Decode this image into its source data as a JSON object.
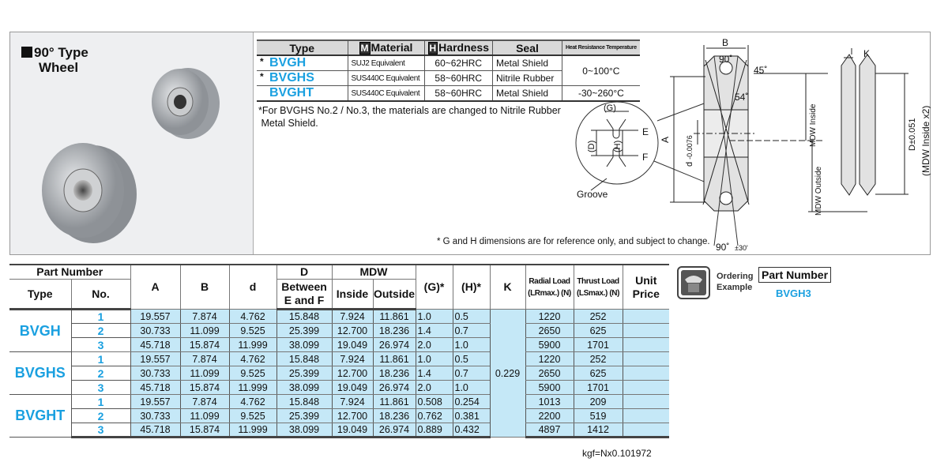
{
  "product": {
    "title_line1": "90° Type",
    "title_line2": "Wheel"
  },
  "spec_table": {
    "headers": {
      "type": "Type",
      "material_icon": "M",
      "material": "Material",
      "hardness_icon": "H",
      "hardness": "Hardness",
      "seal": "Seal",
      "heat": "Heat Resistance Temperature"
    },
    "rows": [
      {
        "mark": "*",
        "type": "BVGH",
        "material": "SUJ2 Equivalent",
        "hardness": "60~62HRC",
        "seal": "Metal Shield"
      },
      {
        "mark": "*",
        "type": "BVGHS",
        "material": "SUS440C Equivalent",
        "hardness": "58~60HRC",
        "seal": "Nitrile Rubber"
      },
      {
        "mark": "",
        "type": "BVGHT",
        "material": "SUS440C Equivalent",
        "hardness": "58~60HRC",
        "seal": "Metal Shield"
      }
    ],
    "heat_1": "0~100°C",
    "heat_2": "-30~260°C",
    "note_line1": "*For BVGHS No.2 / No.3, the materials are changed to Nitrile Rubber",
    "note_line2": "Metal Shield."
  },
  "diagram": {
    "B": "B",
    "angle_top": "90˚",
    "angle_45": "45˚",
    "angle_54": "54˚",
    "A": "A",
    "d": "d",
    "d_tol_upper": "0",
    "d_tol_lower": "-0.0076",
    "G": "(G)",
    "D": "(D)",
    "H": "(H)",
    "E": "E",
    "F": "F",
    "groove": "Groove",
    "mdw_inside": "MDW Inside",
    "mdw_outside": "MDW Outside",
    "K": "K",
    "D_tol": "D±0.051",
    "mdw_x2": "(MDW Inside x2)",
    "angle_bottom": "90˚",
    "angle_bottom_tol": "±30'",
    "note": "* G and H dimensions are for reference only, and subject to change."
  },
  "main_table": {
    "headers": {
      "part_number": "Part Number",
      "type": "Type",
      "no": "No.",
      "A": "A",
      "B": "B",
      "d": "d",
      "D": "D",
      "D_sub": "Between E and F",
      "mdw": "MDW",
      "inside": "Inside",
      "outside": "Outside",
      "G": "(G)*",
      "H": "(H)*",
      "K": "K",
      "radial_1": "Radial Load",
      "radial_2": "(LRmax.) (N)",
      "thrust_1": "Thrust Load",
      "thrust_2": "(LSmax.) (N)",
      "price": "Unit Price"
    },
    "K_value": "0.229",
    "groups": [
      {
        "type": "BVGH",
        "rows": [
          {
            "no": "1",
            "A": "19.557",
            "B": "7.874",
            "d": "4.762",
            "D": "15.848",
            "in": "7.924",
            "out": "11.861",
            "G": "1.0",
            "H": "0.5",
            "radial": "1220",
            "thrust": "252"
          },
          {
            "no": "2",
            "A": "30.733",
            "B": "11.099",
            "d": "9.525",
            "D": "25.399",
            "in": "12.700",
            "out": "18.236",
            "G": "1.4",
            "H": "0.7",
            "radial": "2650",
            "thrust": "625"
          },
          {
            "no": "3",
            "A": "45.718",
            "B": "15.874",
            "d": "11.999",
            "D": "38.099",
            "in": "19.049",
            "out": "26.974",
            "G": "2.0",
            "H": "1.0",
            "radial": "5900",
            "thrust": "1701"
          }
        ]
      },
      {
        "type": "BVGHS",
        "rows": [
          {
            "no": "1",
            "A": "19.557",
            "B": "7.874",
            "d": "4.762",
            "D": "15.848",
            "in": "7.924",
            "out": "11.861",
            "G": "1.0",
            "H": "0.5",
            "radial": "1220",
            "thrust": "252"
          },
          {
            "no": "2",
            "A": "30.733",
            "B": "11.099",
            "d": "9.525",
            "D": "25.399",
            "in": "12.700",
            "out": "18.236",
            "G": "1.4",
            "H": "0.7",
            "radial": "2650",
            "thrust": "625"
          },
          {
            "no": "3",
            "A": "45.718",
            "B": "15.874",
            "d": "11.999",
            "D": "38.099",
            "in": "19.049",
            "out": "26.974",
            "G": "2.0",
            "H": "1.0",
            "radial": "5900",
            "thrust": "1701"
          }
        ]
      },
      {
        "type": "BVGHT",
        "rows": [
          {
            "no": "1",
            "A": "19.557",
            "B": "7.874",
            "d": "4.762",
            "D": "15.848",
            "in": "7.924",
            "out": "11.861",
            "G": "0.508",
            "H": "0.254",
            "radial": "1013",
            "thrust": "209"
          },
          {
            "no": "2",
            "A": "30.733",
            "B": "11.099",
            "d": "9.525",
            "D": "25.399",
            "in": "12.700",
            "out": "18.236",
            "G": "0.762",
            "H": "0.381",
            "radial": "2200",
            "thrust": "519"
          },
          {
            "no": "3",
            "A": "45.718",
            "B": "15.874",
            "d": "11.999",
            "D": "38.099",
            "in": "19.049",
            "out": "26.974",
            "G": "0.889",
            "H": "0.432",
            "radial": "4897",
            "thrust": "1412"
          }
        ]
      }
    ],
    "footnote": "kgf=Nx0.101972"
  },
  "ordering": {
    "label_1": "Ordering",
    "label_2": "Example",
    "part_number_label": "Part Number",
    "example": "BVGH3"
  },
  "colors": {
    "accent": "#1aa0e0",
    "cell_bg": "#c5e8f7"
  }
}
